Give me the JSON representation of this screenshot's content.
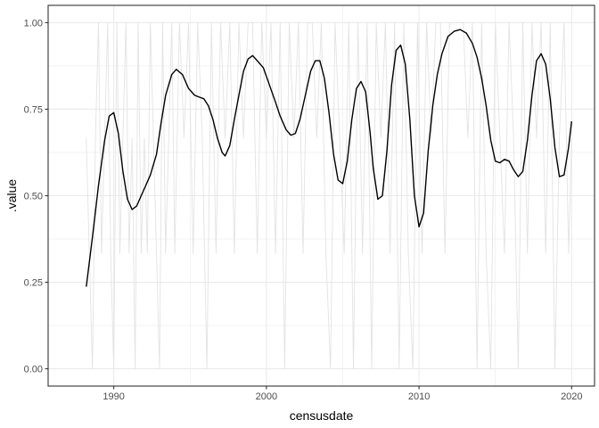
{
  "chart_data": {
    "type": "line",
    "xlabel": "censusdate",
    "ylabel": ".value",
    "xlim": [
      1985.7,
      2021.5
    ],
    "ylim": [
      -0.05,
      1.05
    ],
    "x_ticks": [
      1990,
      2000,
      2010,
      2020
    ],
    "x_tick_labels": [
      "1990",
      "2000",
      "2010",
      "2020"
    ],
    "y_ticks": [
      0,
      0.25,
      0.5,
      0.75,
      1
    ],
    "y_tick_labels": [
      "0.00",
      "0.25",
      "0.50",
      "0.75",
      "1.00"
    ],
    "grid": true,
    "colors": {
      "smooth": "#000000",
      "raw": "#e3e3e3",
      "grid": "#ebebeb",
      "panel_border": "#333333"
    },
    "series": [
      {
        "style": "raw",
        "x": [
          1988.2,
          1988.4,
          1988.6,
          1988.8,
          1989.0,
          1989.2,
          1989.4,
          1989.6,
          1989.8,
          1990.0,
          1990.2,
          1990.4,
          1990.6,
          1990.8,
          1991.0,
          1991.2,
          1991.4,
          1991.6,
          1991.8,
          1992.0,
          1992.2,
          1992.4,
          1992.6,
          1992.8,
          1993.0,
          1993.2,
          1993.4,
          1993.6,
          1993.8,
          1994.0,
          1994.3,
          1994.6,
          1994.9,
          1995.2,
          1995.5,
          1995.8,
          1996.1,
          1996.4,
          1996.7,
          1997.0,
          1997.3,
          1997.6,
          1997.9,
          1998.2,
          1998.5,
          1998.8,
          1999.1,
          1999.4,
          1999.7,
          2000.0,
          2000.3,
          2000.6,
          2000.9,
          2001.2,
          2001.5,
          2001.8,
          2002.1,
          2002.4,
          2002.7,
          2003.0,
          2003.3,
          2003.6,
          2003.9,
          2004.2,
          2004.5,
          2004.8,
          2005.1,
          2005.4,
          2005.7,
          2006.0,
          2006.3,
          2006.6,
          2006.9,
          2007.2,
          2007.5,
          2007.8,
          2008.1,
          2008.4,
          2008.7,
          2009.0,
          2009.3,
          2009.6,
          2009.9,
          2010.2,
          2010.5,
          2010.8,
          2011.1,
          2011.4,
          2011.7,
          2012.0,
          2012.3,
          2012.6,
          2012.9,
          2013.2,
          2013.5,
          2013.8,
          2014.1,
          2014.4,
          2014.7,
          2015.0,
          2015.3,
          2015.6,
          2015.9,
          2016.2,
          2016.5,
          2016.8,
          2017.1,
          2017.4,
          2017.7,
          2018.0,
          2018.3,
          2018.6,
          2018.9,
          2019.2,
          2019.5,
          2019.8,
          2020.0
        ],
        "y": [
          0.667,
          0.333,
          0,
          0.667,
          1,
          0.333,
          0.667,
          1,
          0.333,
          0,
          1,
          0.333,
          0.667,
          1,
          0.333,
          0.667,
          0,
          1,
          0.333,
          0.667,
          0.333,
          1,
          0.667,
          0.333,
          0,
          1,
          0.333,
          0.667,
          1,
          0.333,
          1,
          0.667,
          1,
          0.333,
          1,
          0.667,
          0,
          1,
          0.333,
          1,
          0.667,
          1,
          0.333,
          1,
          0.667,
          1,
          1,
          0.333,
          1,
          0.667,
          1,
          0.333,
          1,
          0,
          1,
          0.667,
          1,
          0.333,
          1,
          1,
          0.667,
          1,
          0.333,
          0,
          1,
          0.667,
          0.333,
          1,
          0,
          1,
          0.333,
          1,
          0,
          1,
          0.667,
          1,
          0.333,
          1,
          0,
          1,
          0.333,
          0,
          1,
          0.333,
          1,
          0.667,
          1,
          1,
          0.333,
          1,
          1,
          1,
          1,
          0.667,
          1,
          0,
          1,
          0.333,
          0,
          1,
          0.667,
          0.333,
          1,
          0.667,
          0,
          1,
          0.333,
          1,
          0.667,
          1,
          0.333,
          1,
          0,
          0.667,
          1,
          0.333,
          0.667
        ]
      },
      {
        "style": "smooth",
        "x": [
          1988.2,
          1988.6,
          1989.0,
          1989.4,
          1989.7,
          1990.0,
          1990.3,
          1990.6,
          1990.9,
          1991.2,
          1991.5,
          1991.8,
          1992.1,
          1992.4,
          1992.8,
          1993.1,
          1993.4,
          1993.8,
          1994.1,
          1994.5,
          1994.9,
          1995.3,
          1995.6,
          1995.9,
          1996.2,
          1996.5,
          1996.8,
          1997.1,
          1997.3,
          1997.6,
          1997.9,
          1998.2,
          1998.5,
          1998.8,
          1999.1,
          1999.4,
          1999.8,
          2000.2,
          2000.6,
          2000.9,
          2001.3,
          2001.6,
          2001.9,
          2002.2,
          2002.6,
          2002.9,
          2003.2,
          2003.5,
          2003.8,
          2004.1,
          2004.4,
          2004.7,
          2005.0,
          2005.3,
          2005.6,
          2005.9,
          2006.2,
          2006.5,
          2006.8,
          2007.0,
          2007.3,
          2007.6,
          2007.9,
          2008.2,
          2008.5,
          2008.8,
          2009.1,
          2009.4,
          2009.7,
          2010.0,
          2010.3,
          2010.6,
          2010.9,
          2011.2,
          2011.5,
          2011.9,
          2012.3,
          2012.7,
          2013.1,
          2013.5,
          2013.8,
          2014.1,
          2014.4,
          2014.7,
          2015.0,
          2015.3,
          2015.6,
          2015.9,
          2016.2,
          2016.5,
          2016.8,
          2017.1,
          2017.4,
          2017.7,
          2018.0,
          2018.3,
          2018.6,
          2018.9,
          2019.2,
          2019.5,
          2019.8,
          2020.0
        ],
        "y": [
          0.237,
          0.38,
          0.53,
          0.66,
          0.73,
          0.74,
          0.68,
          0.57,
          0.49,
          0.46,
          0.47,
          0.5,
          0.53,
          0.56,
          0.62,
          0.71,
          0.79,
          0.85,
          0.865,
          0.85,
          0.81,
          0.79,
          0.785,
          0.78,
          0.76,
          0.72,
          0.665,
          0.625,
          0.615,
          0.645,
          0.72,
          0.79,
          0.86,
          0.895,
          0.905,
          0.89,
          0.87,
          0.82,
          0.77,
          0.73,
          0.69,
          0.675,
          0.68,
          0.72,
          0.8,
          0.86,
          0.89,
          0.89,
          0.84,
          0.74,
          0.62,
          0.545,
          0.535,
          0.6,
          0.72,
          0.81,
          0.83,
          0.8,
          0.68,
          0.58,
          0.49,
          0.5,
          0.63,
          0.82,
          0.92,
          0.935,
          0.88,
          0.72,
          0.5,
          0.41,
          0.45,
          0.63,
          0.76,
          0.85,
          0.91,
          0.96,
          0.975,
          0.98,
          0.97,
          0.94,
          0.9,
          0.84,
          0.76,
          0.66,
          0.6,
          0.595,
          0.605,
          0.6,
          0.575,
          0.555,
          0.57,
          0.66,
          0.79,
          0.89,
          0.91,
          0.88,
          0.78,
          0.64,
          0.555,
          0.56,
          0.64,
          0.715
        ]
      }
    ]
  }
}
